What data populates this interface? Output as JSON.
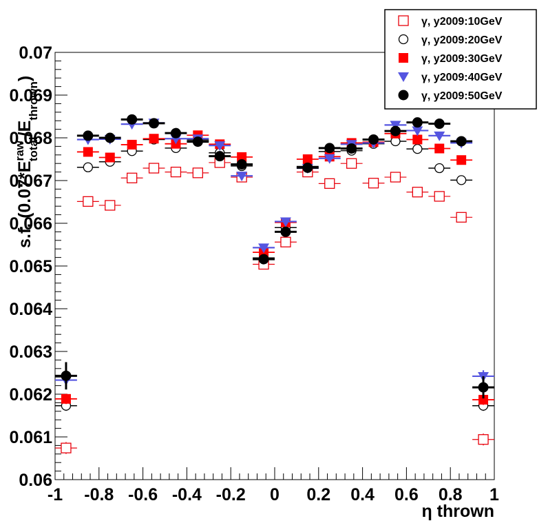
{
  "chart_data": {
    "type": "scatter",
    "xlabel": "η thrown",
    "ylabel": "s.f. (0.07*E_total^raw/E_thrown)",
    "ylabel_parts": {
      "prefix": "s.f. (0.07*E",
      "sup": "raw",
      "sub": "total",
      "mid": "/E",
      "sub2": "thrown",
      "suffix": ")"
    },
    "xlim": [
      -1,
      1
    ],
    "ylim": [
      0.06,
      0.07
    ],
    "xticks": [
      -1,
      -0.8,
      -0.6,
      -0.4,
      -0.2,
      0,
      0.2,
      0.4,
      0.6,
      0.8,
      1
    ],
    "xtick_labels": [
      "-1",
      "-0.8",
      "-0.6",
      "-0.4",
      "-0.2",
      "0",
      "0.2",
      "0.4",
      "0.6",
      "0.8",
      "1"
    ],
    "yticks": [
      0.06,
      0.061,
      0.062,
      0.063,
      0.064,
      0.065,
      0.066,
      0.067,
      0.068,
      0.069,
      0.07
    ],
    "ytick_labels": [
      "0.06",
      "0.061",
      "0.062",
      "0.063",
      "0.064",
      "0.065",
      "0.066",
      "0.067",
      "0.068",
      "0.069",
      "0.07"
    ],
    "legend_position": "top-right",
    "x": [
      -0.95,
      -0.85,
      -0.75,
      -0.65,
      -0.55,
      -0.45,
      -0.35,
      -0.25,
      -0.15,
      -0.05,
      0.05,
      0.15,
      0.25,
      0.35,
      0.45,
      0.55,
      0.65,
      0.75,
      0.85,
      0.95
    ],
    "x_err": 0.05,
    "series": [
      {
        "name": "γ, y2009:10GeV",
        "marker": "open-square",
        "color": "#e8000b",
        "values": [
          0.06074,
          0.06651,
          0.06642,
          0.06706,
          0.06729,
          0.0672,
          0.06718,
          0.06742,
          0.06708,
          0.06504,
          0.06556,
          0.0672,
          0.06693,
          0.0674,
          0.06694,
          0.06708,
          0.06673,
          0.06663,
          0.06614,
          0.06094
        ],
        "y_err": [
          0.00014,
          6e-05,
          6e-05,
          6e-05,
          6e-05,
          6e-05,
          6e-05,
          6e-05,
          6e-05,
          7e-05,
          7e-05,
          6e-05,
          6e-05,
          6e-05,
          6e-05,
          6e-05,
          6e-05,
          6e-05,
          6e-05,
          0.00014
        ]
      },
      {
        "name": "γ, y2009:20GeV",
        "marker": "open-circle",
        "color": "#000000",
        "values": [
          0.06173,
          0.06731,
          0.06744,
          0.06769,
          0.06796,
          0.06776,
          0.06795,
          0.06765,
          0.06734,
          0.06519,
          0.0659,
          0.06733,
          0.06768,
          0.0677,
          0.06786,
          0.06792,
          0.06774,
          0.06729,
          0.06701,
          0.06173
        ],
        "y_err": [
          0.00012,
          5e-05,
          5e-05,
          5e-05,
          5e-05,
          5e-05,
          5e-05,
          5e-05,
          5e-05,
          6e-05,
          6e-05,
          5e-05,
          5e-05,
          5e-05,
          5e-05,
          5e-05,
          5e-05,
          5e-05,
          5e-05,
          0.00012
        ]
      },
      {
        "name": "γ, y2009:30GeV",
        "marker": "filled-square",
        "color": "#ff0000",
        "values": [
          0.06189,
          0.06767,
          0.06754,
          0.06784,
          0.06798,
          0.06786,
          0.06806,
          0.06785,
          0.06755,
          0.06532,
          0.06602,
          0.0675,
          0.06756,
          0.06788,
          0.0679,
          0.0681,
          0.06796,
          0.06775,
          0.06748,
          0.06187
        ],
        "y_err": [
          0.00012,
          5e-05,
          5e-05,
          5e-05,
          5e-05,
          5e-05,
          5e-05,
          5e-05,
          5e-05,
          6e-05,
          6e-05,
          5e-05,
          5e-05,
          5e-05,
          5e-05,
          5e-05,
          5e-05,
          5e-05,
          5e-05,
          0.00012
        ]
      },
      {
        "name": "γ, y2009:40GeV",
        "marker": "filled-triangle-down",
        "color": "#5555e0",
        "values": [
          0.06233,
          0.06796,
          0.06797,
          0.06832,
          0.06835,
          0.06798,
          0.06798,
          0.06782,
          0.06711,
          0.06543,
          0.06604,
          0.06729,
          0.06752,
          0.06785,
          0.06788,
          0.0683,
          0.06817,
          0.06805,
          0.06788,
          0.06242
        ],
        "y_err": [
          0.00014,
          5e-05,
          5e-05,
          5e-05,
          5e-05,
          5e-05,
          5e-05,
          5e-05,
          5e-05,
          6e-05,
          6e-05,
          5e-05,
          5e-05,
          5e-05,
          5e-05,
          5e-05,
          5e-05,
          5e-05,
          5e-05,
          0.00014
        ]
      },
      {
        "name": "γ, y2009:50GeV",
        "marker": "filled-circle",
        "color": "#000000",
        "values": [
          0.06243,
          0.06805,
          0.068,
          0.06843,
          0.06834,
          0.06811,
          0.06791,
          0.06757,
          0.06738,
          0.06516,
          0.0658,
          0.0673,
          0.06776,
          0.06775,
          0.06796,
          0.06816,
          0.06836,
          0.06833,
          0.06792,
          0.06216
        ],
        "y_err": [
          0.00032,
          7e-05,
          7e-05,
          7e-05,
          7e-05,
          7e-05,
          7e-05,
          7e-05,
          7e-05,
          7e-05,
          7e-05,
          7e-05,
          7e-05,
          7e-05,
          7e-05,
          7e-05,
          7e-05,
          7e-05,
          7e-05,
          0.00026
        ]
      }
    ]
  }
}
